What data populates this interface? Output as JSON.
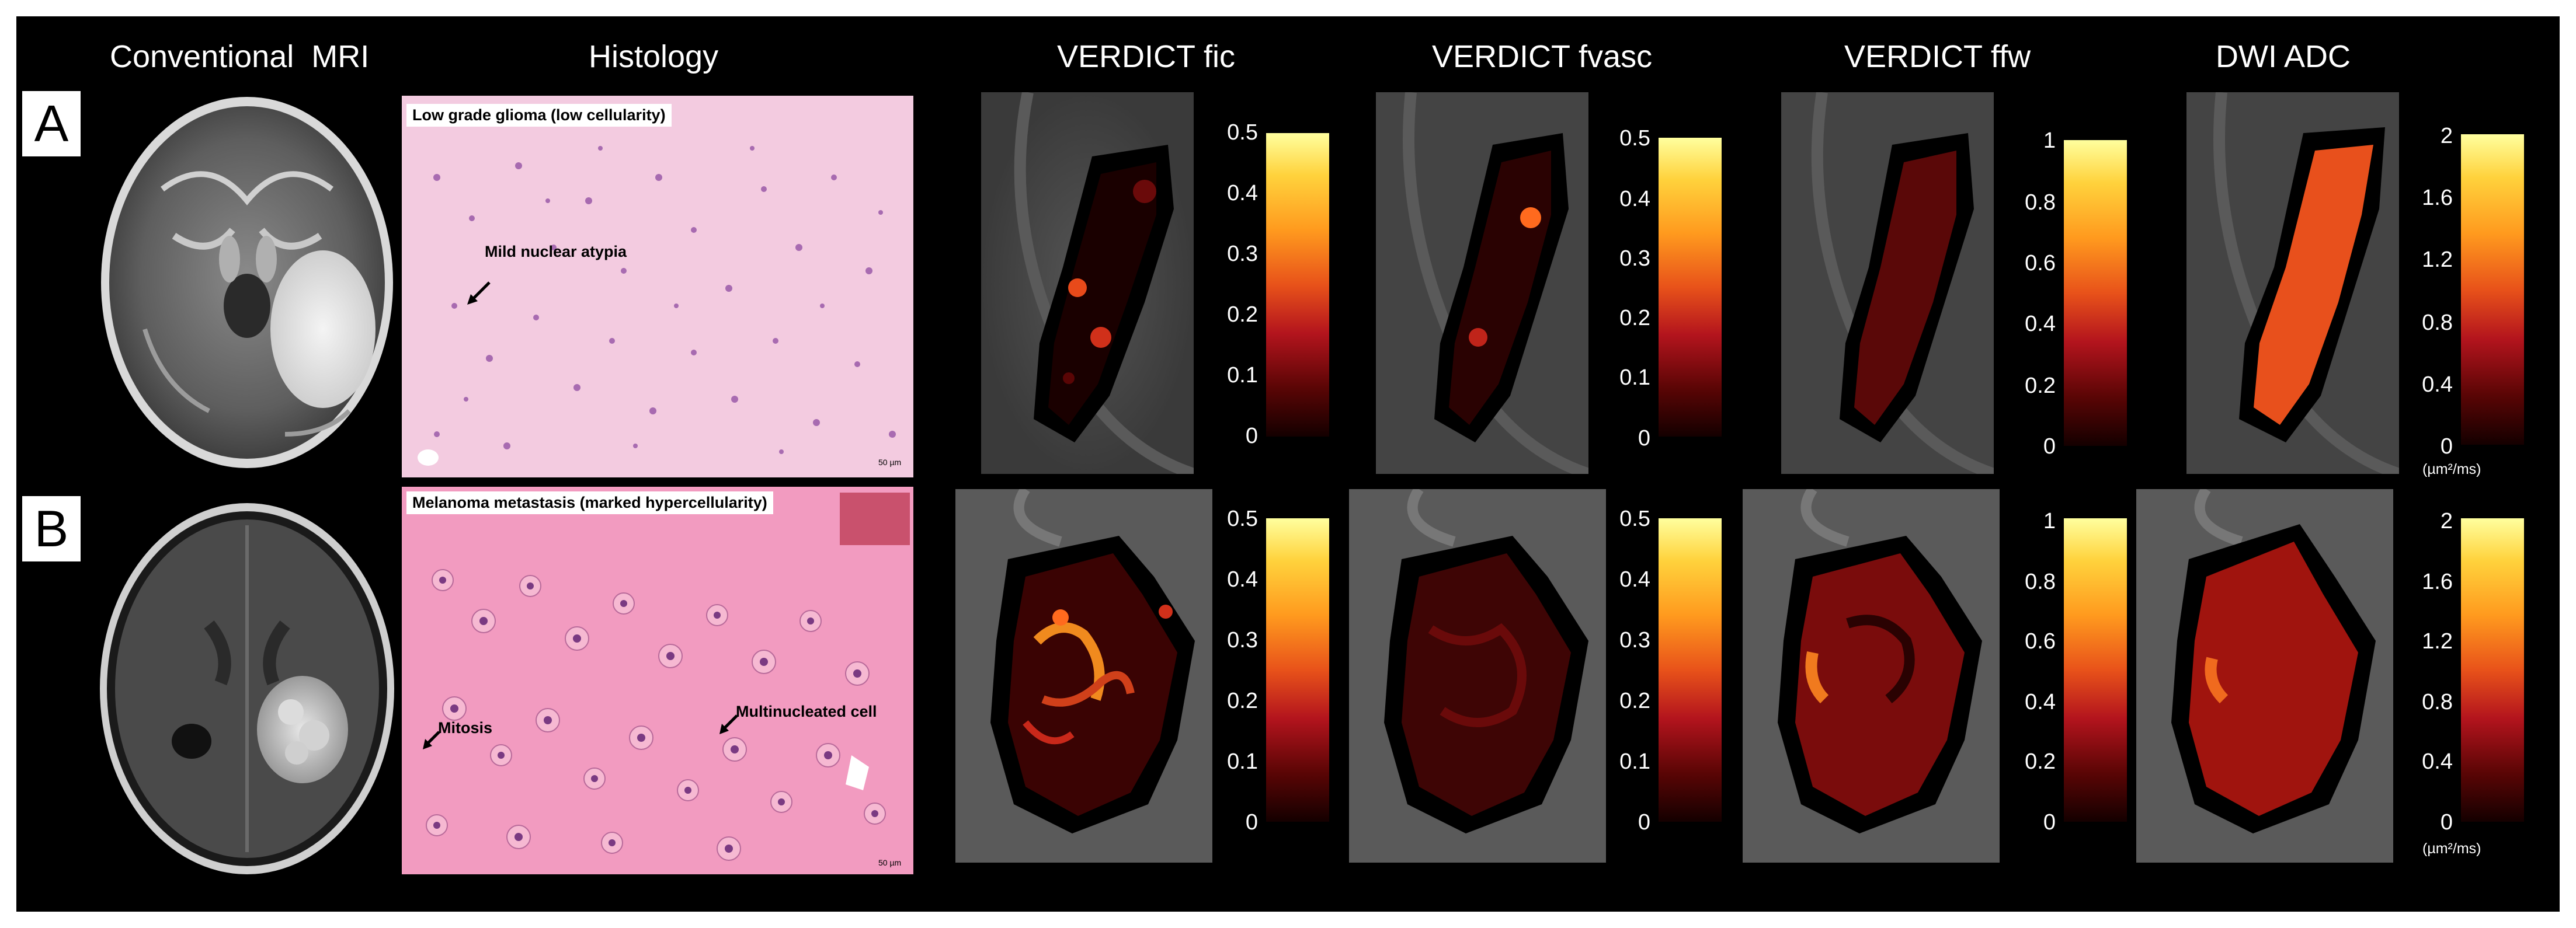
{
  "columns": {
    "mri": "Conventional  MRI",
    "histology": "Histology",
    "fic": "VERDICT fic",
    "fvasc": "VERDICT fvasc",
    "ffw": "VERDICT ffw",
    "adc": "DWI ADC"
  },
  "rows": {
    "a": {
      "label": "A",
      "histology_title": "Low grade glioma (low cellularity)",
      "annotation": "Mild nuclear atypia",
      "scalebar": "50 µm"
    },
    "b": {
      "label": "B",
      "histology_title": "Melanoma metastasis (marked hypercellularity)",
      "annotation_1": "Mitosis",
      "annotation_2": "Multinucleated cell",
      "scalebar": "50 µm"
    }
  },
  "colorbars": {
    "fic": [
      "0.5",
      "0.4",
      "0.3",
      "0.2",
      "0.1",
      "0"
    ],
    "fvasc": [
      "0.5",
      "0.4",
      "0.3",
      "0.2",
      "0.1",
      "0"
    ],
    "ffw": [
      "1",
      "0.8",
      "0.6",
      "0.4",
      "0.2",
      "0"
    ],
    "adc": [
      "2",
      "1.6",
      "1.2",
      "0.8",
      "0.4",
      "0"
    ],
    "adc_unit": "(µm²/ms)"
  },
  "colors": {
    "background": "#000000",
    "histology_pink": "#f2c4dd",
    "histology_dark_pink": "#f08fb8"
  }
}
